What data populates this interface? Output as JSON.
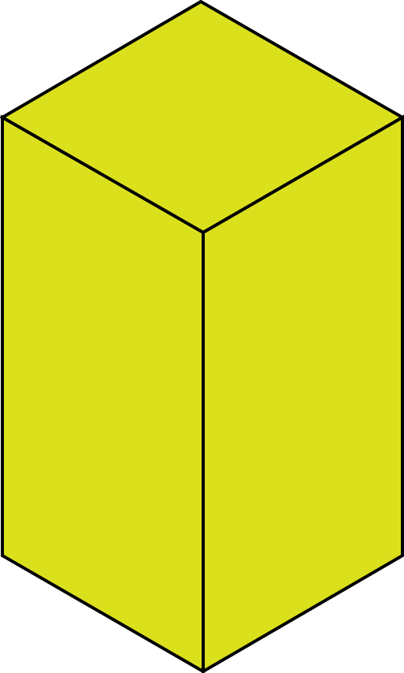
{
  "figure": {
    "shape": "rectangular-prism",
    "view": "isometric",
    "fill_color": "#dbe01d",
    "stroke_color": "#000000",
    "background_color": "#ffffff"
  }
}
